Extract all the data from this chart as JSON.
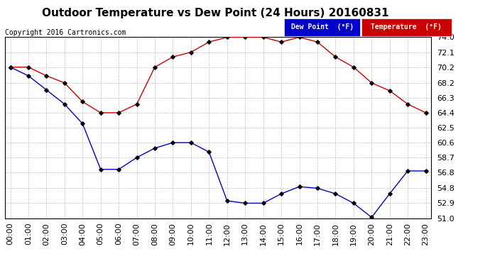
{
  "title": "Outdoor Temperature vs Dew Point (24 Hours) 20160831",
  "copyright": "Copyright 2016 Cartronics.com",
  "background_color": "#ffffff",
  "plot_bg_color": "#ffffff",
  "grid_color": "#b0b0b0",
  "hours": [
    0,
    1,
    2,
    3,
    4,
    5,
    6,
    7,
    8,
    9,
    10,
    11,
    12,
    13,
    14,
    15,
    16,
    17,
    18,
    19,
    20,
    21,
    22,
    23
  ],
  "temperature": [
    70.2,
    70.2,
    69.1,
    68.2,
    65.8,
    64.4,
    64.4,
    65.5,
    70.2,
    71.5,
    72.1,
    73.4,
    74.0,
    74.0,
    74.0,
    73.4,
    74.0,
    73.4,
    71.5,
    70.2,
    68.2,
    67.2,
    65.5,
    64.4
  ],
  "dew_point": [
    70.2,
    69.1,
    67.3,
    65.5,
    63.0,
    57.2,
    57.2,
    58.7,
    59.9,
    60.6,
    60.6,
    59.4,
    53.2,
    52.9,
    52.9,
    54.1,
    55.0,
    54.8,
    54.1,
    52.9,
    51.1,
    54.1,
    57.0,
    57.0
  ],
  "temp_color": "#cc0000",
  "dew_color": "#0000cc",
  "marker_color": "#000000",
  "ylim_min": 51.0,
  "ylim_max": 74.0,
  "yticks": [
    51.0,
    52.9,
    54.8,
    56.8,
    58.7,
    60.6,
    62.5,
    64.4,
    66.3,
    68.2,
    70.2,
    72.1,
    74.0
  ],
  "legend_dew_bg": "#0000cc",
  "legend_temp_bg": "#cc0000",
  "legend_text_color": "#ffffff",
  "title_fontsize": 11,
  "axis_label_fontsize": 8,
  "copyright_fontsize": 7
}
